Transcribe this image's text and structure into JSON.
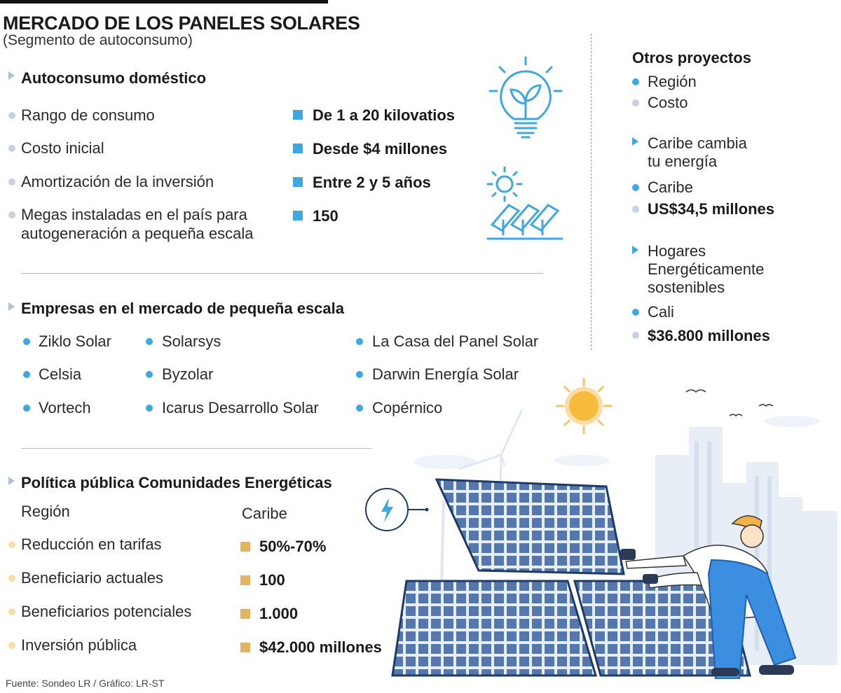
{
  "header": {
    "title": "MERCADO DE LOS PANELES SOLARES",
    "subtitle": "(Segmento de autoconsumo)"
  },
  "autoconsumo": {
    "heading": "Autoconsumo doméstico",
    "rows": [
      {
        "label": "Rango de consumo",
        "value": "De 1 a 20 kilovatios"
      },
      {
        "label": "Costo inicial",
        "value": "Desde $4 millones"
      },
      {
        "label": "Amortización de la inversión",
        "value": "Entre 2 y 5 años"
      },
      {
        "label_line1": "Megas instaladas en el país para",
        "label_line2": "autogeneración a pequeña escala",
        "value": "150"
      }
    ]
  },
  "empresas": {
    "heading": "Empresas en el mercado de pequeña escala",
    "names": [
      "Ziklo Solar",
      "Celsia",
      "Vortech",
      "Solarsys",
      "Byzolar",
      "Icarus Desarrollo Solar",
      "La Casa del Panel Solar",
      "Darwin Energía Solar",
      "Copérnico"
    ]
  },
  "politica": {
    "heading": "Política pública Comunidades Energéticas",
    "col_label": "Región",
    "col_value": "Caribe",
    "rows": [
      {
        "label": "Reducción en tarifas",
        "value": "50%-70%"
      },
      {
        "label": "Beneficiario actuales",
        "value": "100"
      },
      {
        "label": "Beneficiarios potenciales",
        "value": "1.000"
      },
      {
        "label": "Inversión pública",
        "value": "$42.000 millones"
      }
    ]
  },
  "otros": {
    "heading": "Otros proyectos",
    "legend": [
      "Región",
      "Costo"
    ],
    "projects": [
      {
        "name_lines": [
          "Caribe cambia",
          "tu energía"
        ],
        "region": "Caribe",
        "cost": "US$34,5 millones"
      },
      {
        "name_lines": [
          "Hogares",
          "Energéticamente",
          "sostenibles"
        ],
        "region": "Cali",
        "cost": "$36.800 millones"
      }
    ]
  },
  "source": "Fuente: Sondeo LR / Gráfico: LR-ST",
  "colors": {
    "accent_blue": "#3ea7e0",
    "bullet_grey": "#c6d1e2",
    "gold": "#e2b461",
    "peach": "#f9dda5"
  },
  "icons": [
    "lightbulb-leaf-icon",
    "sun-icon",
    "solar-panels-icon",
    "lightning-icon"
  ]
}
